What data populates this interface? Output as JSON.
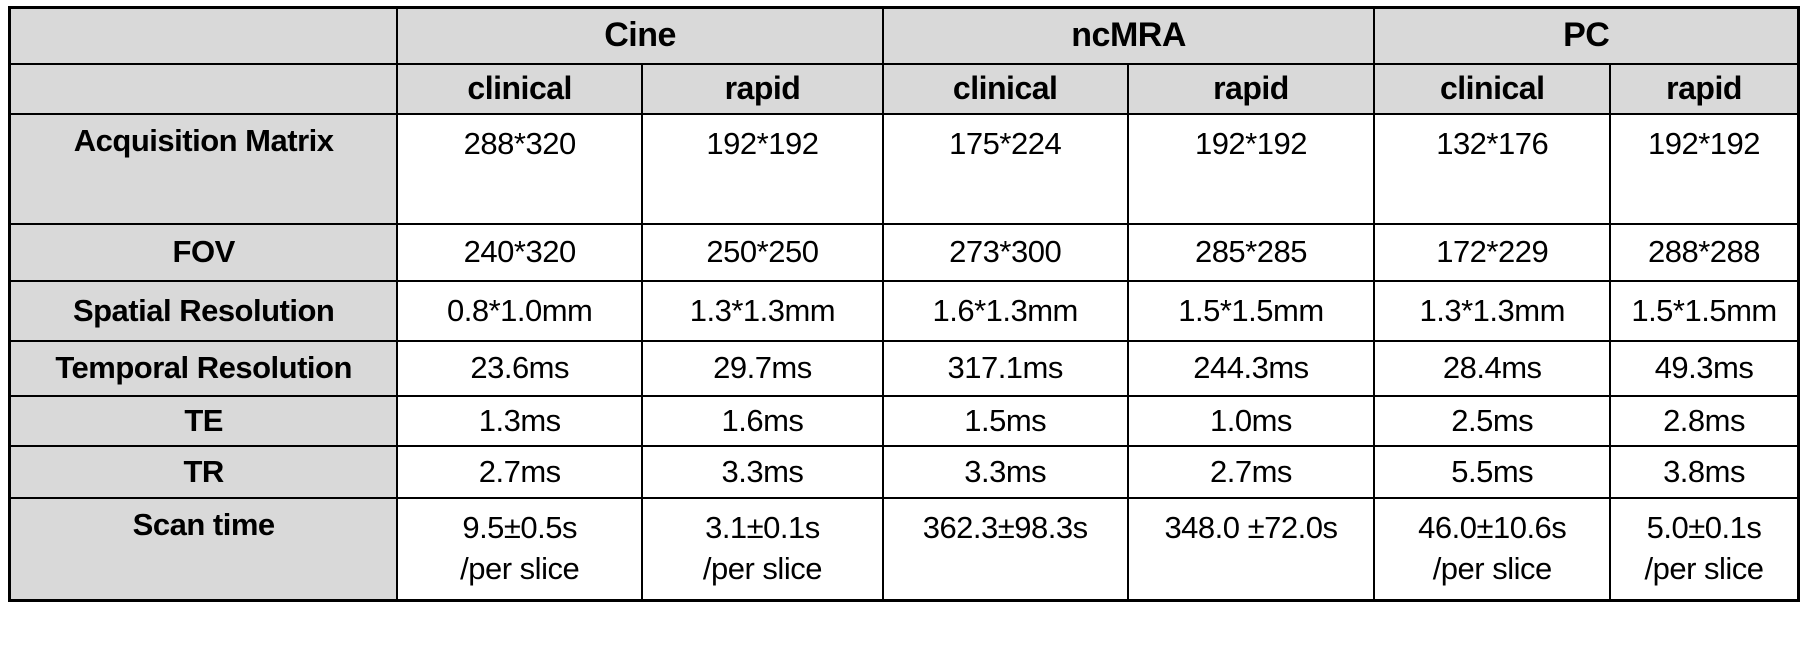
{
  "table": {
    "description": "MRI sequence parameter comparison table",
    "colors": {
      "header_bg": "#d9d9d9",
      "body_bg": "#ffffff",
      "border": "#000000",
      "text": "#000000"
    },
    "corner_label": "",
    "col_groups": [
      {
        "label": "Cine"
      },
      {
        "label": "ncMRA"
      },
      {
        "label": "PC"
      }
    ],
    "sub_headers": [
      "clinical",
      "rapid",
      "clinical",
      "rapid",
      "clinical",
      "rapid"
    ],
    "rows": [
      {
        "label": "Acquisition Matrix",
        "values": [
          "288*320",
          "192*192",
          "175*224",
          "192*192",
          "132*176",
          "192*192"
        ]
      },
      {
        "label": "FOV",
        "values": [
          "240*320",
          "250*250",
          "273*300",
          "285*285",
          "172*229",
          "288*288"
        ]
      },
      {
        "label": "Spatial Resolution",
        "values": [
          "0.8*1.0mm",
          "1.3*1.3mm",
          "1.6*1.3mm",
          "1.5*1.5mm",
          "1.3*1.3mm",
          "1.5*1.5mm"
        ]
      },
      {
        "label": "Temporal Resolution",
        "values": [
          "23.6ms",
          "29.7ms",
          "317.1ms",
          "244.3ms",
          "28.4ms",
          "49.3ms"
        ]
      },
      {
        "label": "TE",
        "values": [
          "1.3ms",
          "1.6ms",
          "1.5ms",
          "1.0ms",
          "2.5ms",
          "2.8ms"
        ]
      },
      {
        "label": "TR",
        "values": [
          "2.7ms",
          "3.3ms",
          "3.3ms",
          "2.7ms",
          "5.5ms",
          "3.8ms"
        ]
      },
      {
        "label": "Scan time",
        "values": [
          "9.5±0.5s\n/per slice",
          "3.1±0.1s\n/per slice",
          "362.3±98.3s",
          "348.0 ±72.0s",
          "46.0±10.6s\n/per slice",
          "5.0±0.1s\n/per slice"
        ]
      }
    ]
  }
}
